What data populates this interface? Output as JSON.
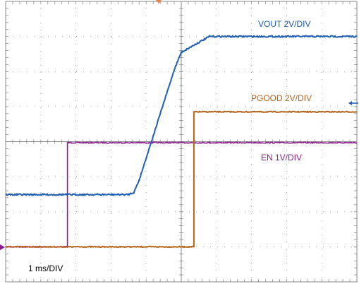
{
  "chart_data": {
    "type": "line",
    "grid": true,
    "x_divisions": 10,
    "y_divisions": 8,
    "x_unit_per_div": "1 ms",
    "timebase_label": "1 ms/DIV",
    "series": [
      {
        "name": "VOUT 2V/DIV",
        "color": "#1f5fb4",
        "x_div": [
          0,
          3.48,
          3.65,
          3.8,
          4.8,
          5.0,
          5.8,
          10
        ],
        "y_div": [
          2.49,
          2.49,
          2.55,
          2.9,
          6.05,
          6.55,
          7.0,
          7.0
        ]
      },
      {
        "name": "PGOOD 2V/DIV",
        "color": "#b5651d",
        "x_div": [
          0,
          5.36,
          5.36,
          10
        ],
        "y_div": [
          1.0,
          1.0,
          4.85,
          4.85
        ]
      },
      {
        "name": "EN 1V/DIV",
        "color": "#8e1c8e",
        "x_div": [
          0,
          1.76,
          1.76,
          10
        ],
        "y_div": [
          1.0,
          1.0,
          3.97,
          3.97
        ]
      }
    ]
  },
  "colors": {
    "background": "#ffffff",
    "grid": "#8a8a8a",
    "vout": "#1f5fb4",
    "pgood": "#b5651d",
    "en": "#8e1c8e",
    "trigger_marker": "#f08040",
    "ground_marker": "#8e1c8e",
    "pgood_arrow": "#1f5fb4"
  }
}
